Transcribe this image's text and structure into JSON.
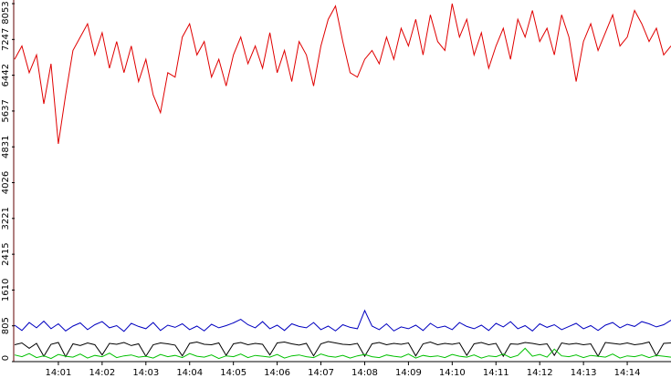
{
  "chart_data": {
    "type": "line",
    "xlim": [
      0,
      90
    ],
    "xticks": [
      {
        "value": 6,
        "label": "14:01"
      },
      {
        "value": 12,
        "label": "14:02"
      },
      {
        "value": 18,
        "label": "14:03"
      },
      {
        "value": 24,
        "label": "14:04"
      },
      {
        "value": 30,
        "label": "14:05"
      },
      {
        "value": 36,
        "label": "14:06"
      },
      {
        "value": 42,
        "label": "14:07"
      },
      {
        "value": 48,
        "label": "14:08"
      },
      {
        "value": 54,
        "label": "14:09"
      },
      {
        "value": 60,
        "label": "14:10"
      },
      {
        "value": 66,
        "label": "14:11"
      },
      {
        "value": 72,
        "label": "14:12"
      },
      {
        "value": 78,
        "label": "14:13"
      },
      {
        "value": 84,
        "label": "14:14"
      }
    ],
    "ylim": [
      0,
      8053
    ],
    "yticks": [
      0,
      805,
      1610,
      2415,
      3221,
      4026,
      4831,
      5637,
      6442,
      7247,
      8053
    ],
    "grid": false,
    "series": [
      {
        "color": "#e00000",
        "values": [
          6800,
          7100,
          6500,
          6900,
          5800,
          6700,
          4900,
          6000,
          7000,
          7300,
          7600,
          6900,
          7400,
          6600,
          7200,
          6500,
          7100,
          6300,
          6800,
          6000,
          5600,
          6500,
          6400,
          7300,
          7600,
          6900,
          7200,
          6400,
          6800,
          6200,
          6900,
          7300,
          6700,
          7100,
          6600,
          7400,
          6500,
          7000,
          6300,
          7200,
          6900,
          6200,
          7100,
          7700,
          8000,
          7200,
          6500,
          6400,
          6800,
          7000,
          6700,
          7300,
          6800,
          7500,
          7100,
          7700,
          6900,
          7800,
          7200,
          7000,
          8053,
          7300,
          7700,
          6900,
          7400,
          6600,
          7100,
          7500,
          6800,
          7700,
          7300,
          7900,
          7200,
          7500,
          6900,
          7800,
          7300,
          6300,
          7200,
          7600,
          7000,
          7400,
          7800,
          7100,
          7300,
          7900,
          7600,
          7200,
          7500,
          6900,
          7100
        ]
      },
      {
        "color": "#0000c0",
        "values": [
          820,
          700,
          880,
          760,
          910,
          740,
          850,
          690,
          800,
          870,
          720,
          830,
          900,
          760,
          810,
          680,
          860,
          790,
          740,
          880,
          700,
          820,
          770,
          850,
          720,
          800,
          690,
          840,
          760,
          810,
          870,
          950,
          830,
          760,
          900,
          740,
          820,
          700,
          850,
          790,
          760,
          880,
          720,
          800,
          690,
          830,
          770,
          740,
          1150,
          800,
          720,
          850,
          690,
          780,
          740,
          820,
          700,
          860,
          760,
          800,
          720,
          880,
          790,
          740,
          820,
          700,
          860,
          780,
          900,
          740,
          810,
          690,
          850,
          770,
          830,
          720,
          790,
          860,
          740,
          810,
          700,
          820,
          880,
          760,
          840,
          790,
          900,
          850,
          780,
          830,
          930
        ]
      },
      {
        "color": "#000000",
        "values": [
          380,
          420,
          300,
          410,
          120,
          390,
          430,
          110,
          400,
          360,
          420,
          380,
          150,
          410,
          390,
          430,
          360,
          400,
          120,
          380,
          420,
          400,
          370,
          130,
          410,
          440,
          390,
          380,
          420,
          140,
          400,
          430,
          380,
          410,
          390,
          150,
          420,
          440,
          400,
          370,
          410,
          130,
          400,
          450,
          420,
          390,
          380,
          410,
          120,
          400,
          430,
          380,
          410,
          390,
          420,
          130,
          400,
          440,
          380,
          410,
          390,
          420,
          140,
          400,
          430,
          380,
          410,
          120,
          400,
          390,
          430,
          410,
          380,
          400,
          140,
          420,
          390,
          410,
          380,
          400,
          120,
          430,
          410,
          390,
          420,
          380,
          400,
          440,
          130,
          410,
          420
        ]
      },
      {
        "color": "#00c000",
        "values": [
          150,
          110,
          180,
          90,
          130,
          70,
          160,
          120,
          100,
          170,
          80,
          140,
          110,
          190,
          90,
          130,
          150,
          100,
          120,
          80,
          160,
          110,
          140,
          90,
          180,
          120,
          100,
          150,
          70,
          130,
          110,
          170,
          90,
          140,
          120,
          100,
          160,
          80,
          130,
          150,
          110,
          90,
          170,
          120,
          100,
          140,
          80,
          130,
          160,
          110,
          90,
          150,
          120,
          100,
          170,
          80,
          140,
          110,
          130,
          90,
          160,
          120,
          100,
          150,
          80,
          130,
          110,
          170,
          90,
          140,
          300,
          120,
          160,
          100,
          280,
          130,
          110,
          150,
          90,
          140,
          120,
          100,
          170,
          80,
          130,
          110,
          150,
          90,
          140,
          120,
          100
        ]
      }
    ]
  }
}
